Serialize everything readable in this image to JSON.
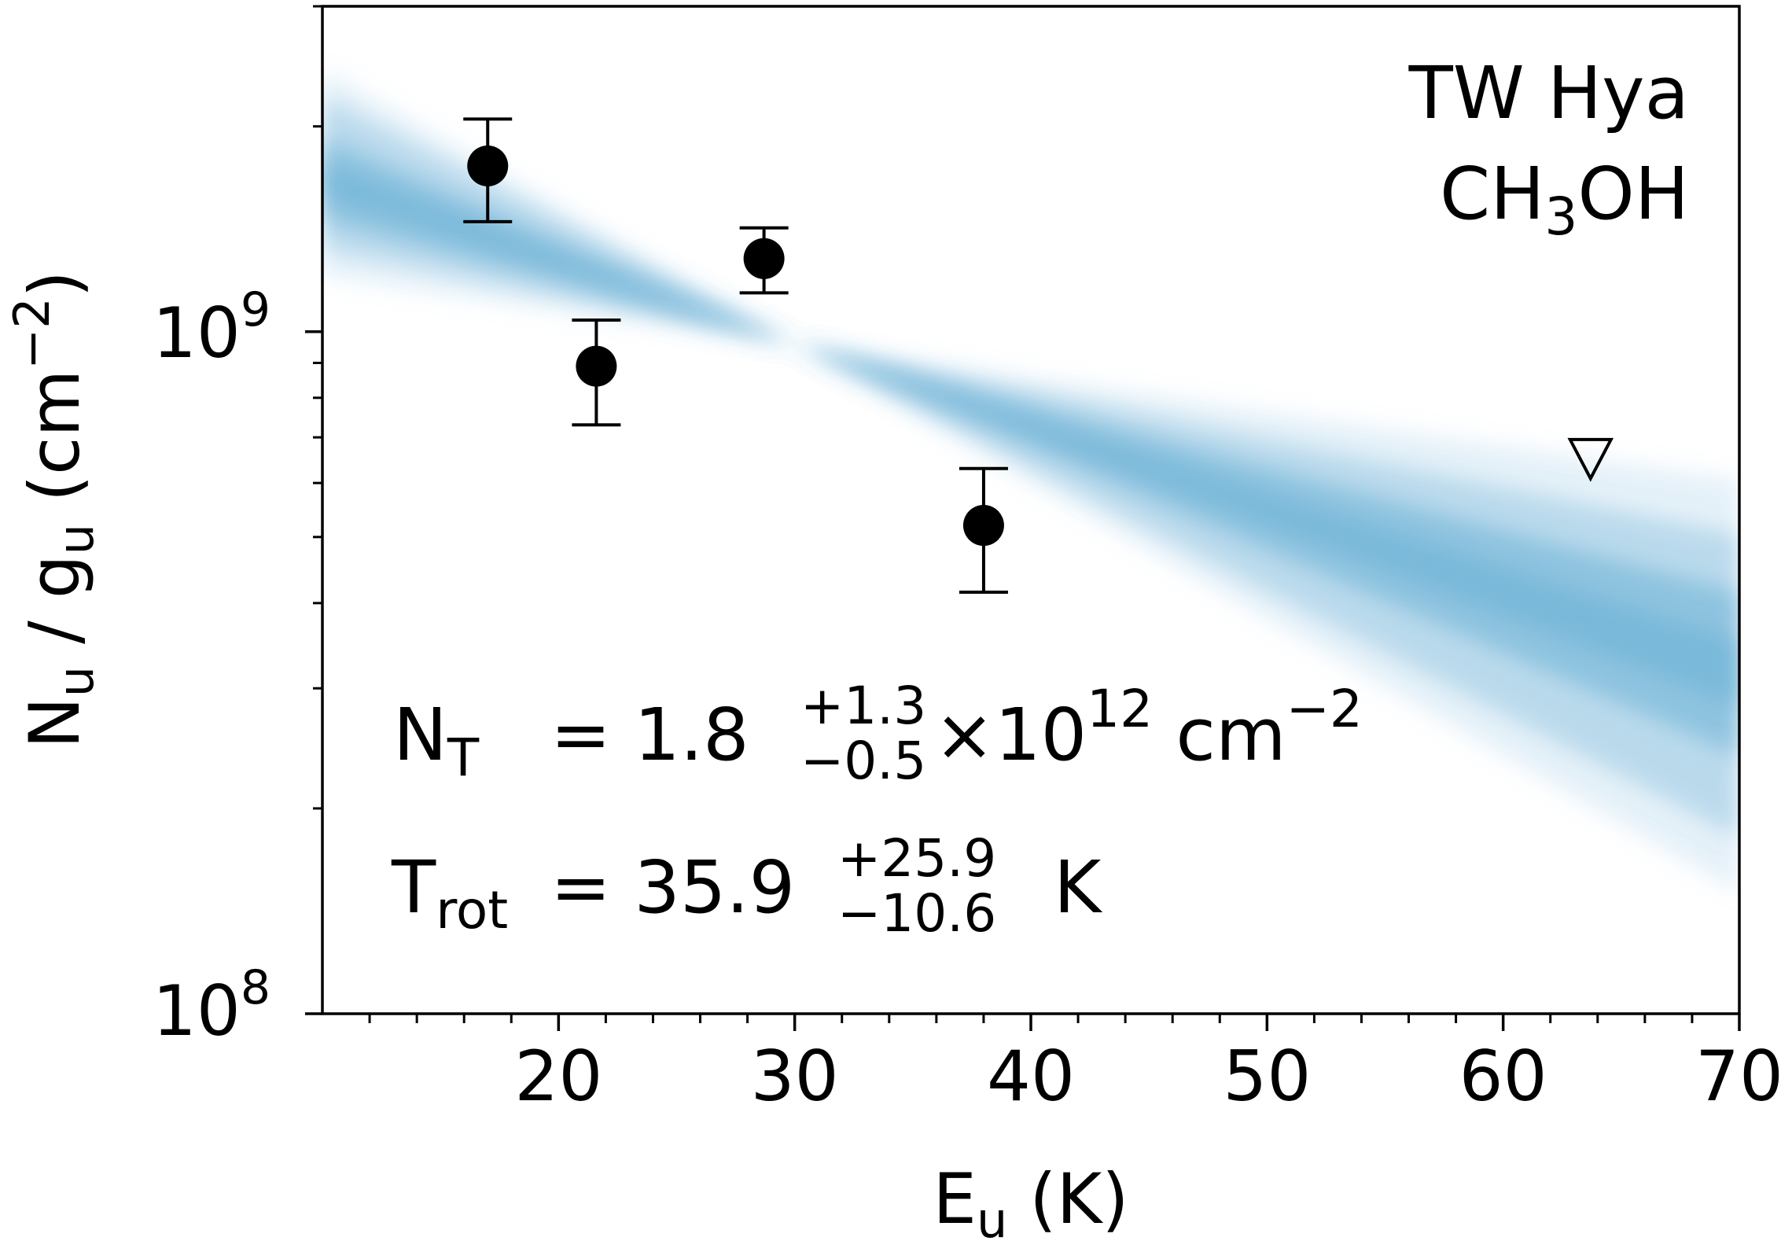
{
  "chart_data": {
    "type": "scatter",
    "x_axis": {
      "label_main": "E",
      "label_sub": "u",
      "label_unit": "(K)",
      "lim": [
        10,
        70
      ],
      "ticks": [
        20,
        30,
        40,
        50,
        60,
        70
      ],
      "tick_labels": [
        "20",
        "30",
        "40",
        "50",
        "60",
        "70"
      ],
      "minor_step": 2
    },
    "y_axis": {
      "scale": "log",
      "label_n": "N",
      "label_n_sub": "u",
      "label_slash": "/",
      "label_g": "g",
      "label_g_sub": "u",
      "label_unit_open": "(cm",
      "label_unit_exp": "−2",
      "label_unit_close": ")",
      "lim": [
        100000000.0,
        3000000000.0
      ],
      "major_ticks": [
        100000000.0,
        1000000000.0
      ],
      "tick_label_base": "10",
      "tick_label_exps": [
        "8",
        "9"
      ]
    },
    "series": [
      {
        "marker": "circle",
        "color": "#000000",
        "points": [
          {
            "x": 17.0,
            "y": 1750000000.0,
            "y_lo": 1450000000.0,
            "y_hi": 2050000000.0
          },
          {
            "x": 21.6,
            "y": 890000000.0,
            "y_lo": 730000000.0,
            "y_hi": 1040000000.0
          },
          {
            "x": 28.7,
            "y": 1280000000.0,
            "y_lo": 1140000000.0,
            "y_hi": 1420000000.0
          },
          {
            "x": 38.0,
            "y": 520000000.0,
            "y_lo": 415000000.0,
            "y_hi": 630000000.0
          }
        ]
      },
      {
        "marker": "triangle-down-open",
        "color": "#000000",
        "points": [
          {
            "x": 63.7,
            "y": 665000000.0
          }
        ]
      }
    ],
    "fit_band": {
      "color": "#6ab0d6",
      "center_x": 30,
      "center_y": 960000000.0,
      "slope_median": -0.0121,
      "slope_lo": -0.0181,
      "slope_hi": -0.007
    },
    "annotations": {
      "object": "TW Hya",
      "molecule_main": "CH",
      "molecule_sub": "3",
      "molecule_tail": "OH",
      "nt_label": "N",
      "nt_sub": "T",
      "nt_eq": "= 1.8",
      "nt_sup_err": "+1.3",
      "nt_sub_err": "−0.5",
      "nt_tail": "×10",
      "nt_exp": "12",
      "nt_unit": "cm",
      "nt_unit_exp": "−2",
      "trot_label": "T",
      "trot_sub": "rot",
      "trot_eq": "= 35.9",
      "trot_sup_err": "+25.9",
      "trot_sub_err": "−10.6",
      "trot_unit": "K"
    }
  }
}
